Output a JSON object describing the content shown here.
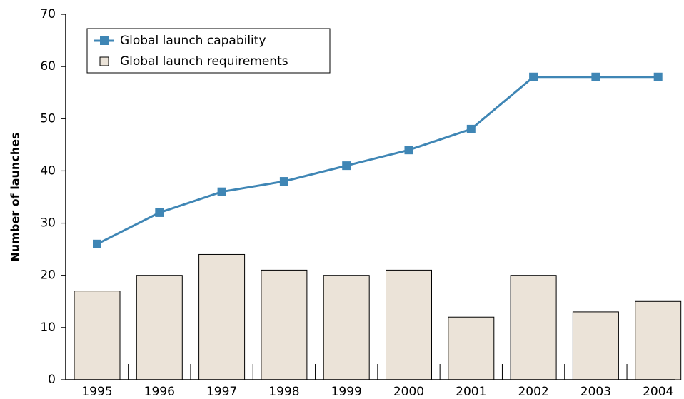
{
  "chart_data": {
    "type": "bar-line",
    "y_label": "Number of launches",
    "categories": [
      "1995",
      "1996",
      "1997",
      "1998",
      "1999",
      "2000",
      "2001",
      "2002",
      "2003",
      "2004"
    ],
    "series": [
      {
        "name": "Global launch capability",
        "type": "line",
        "color": "#3f86b5",
        "values": [
          26,
          32,
          36,
          38,
          41,
          44,
          48,
          58,
          58,
          58
        ]
      },
      {
        "name": "Global launch requirements",
        "type": "bar",
        "color": "#ebe3d8",
        "values": [
          17,
          20,
          24,
          21,
          20,
          21,
          12,
          20,
          13,
          15
        ]
      }
    ],
    "ylim": [
      0,
      70
    ],
    "yticks": [
      0,
      10,
      20,
      30,
      40,
      50,
      60,
      70
    ],
    "legend": "upper left",
    "grid": false
  }
}
